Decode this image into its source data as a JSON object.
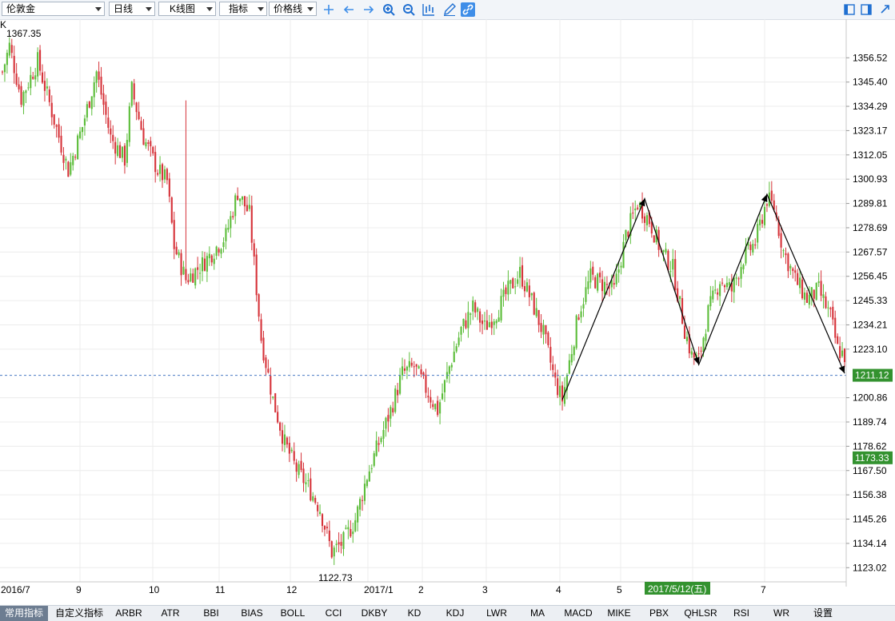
{
  "toolbar": {
    "symbol": "伦敦金",
    "period": "日线",
    "chart_type": "K线图",
    "indicator": "指标",
    "price_line": "价格线"
  },
  "chart_data": {
    "type": "candlestick",
    "title": "",
    "corner_label": "K",
    "price_axis_ticks": [
      "1356.52",
      "1345.40",
      "1334.29",
      "1323.17",
      "1312.05",
      "1300.93",
      "1289.81",
      "1278.69",
      "1267.57",
      "1256.45",
      "1245.33",
      "1234.21",
      "1223.10",
      "1200.86",
      "1189.74",
      "1178.62",
      "1167.50",
      "1156.38",
      "1145.26",
      "1134.14",
      "1123.02"
    ],
    "date_axis_ticks": [
      "2016/7",
      "9",
      "10",
      "11",
      "12",
      "2017/1",
      "2",
      "3",
      "4",
      "5",
      "6",
      "7"
    ],
    "high_label": "1367.35",
    "low_label": "1122.73",
    "current_price": "1211.12",
    "crosshair_price": "1173.33",
    "crosshair_date": "2017/5/12(五)",
    "grid": true,
    "up_color": "#5cbd3a",
    "down_color": "#d6333a",
    "ylim": [
      1118,
      1372
    ],
    "keypoints": [
      [
        0,
        1350
      ],
      [
        3,
        1362
      ],
      [
        8,
        1338
      ],
      [
        15,
        1355
      ],
      [
        22,
        1328
      ],
      [
        28,
        1305
      ],
      [
        34,
        1325
      ],
      [
        40,
        1350
      ],
      [
        46,
        1320
      ],
      [
        52,
        1310
      ],
      [
        55,
        1342
      ],
      [
        60,
        1320
      ],
      [
        66,
        1305
      ],
      [
        70,
        1300
      ],
      [
        73,
        1270
      ],
      [
        78,
        1255
      ],
      [
        85,
        1262
      ],
      [
        95,
        1275
      ],
      [
        100,
        1295
      ],
      [
        105,
        1285
      ],
      [
        110,
        1228
      ],
      [
        115,
        1200
      ],
      [
        120,
        1180
      ],
      [
        125,
        1168
      ],
      [
        130,
        1160
      ],
      [
        135,
        1150
      ],
      [
        140,
        1130
      ],
      [
        145,
        1135
      ],
      [
        150,
        1145
      ],
      [
        155,
        1165
      ],
      [
        160,
        1180
      ],
      [
        165,
        1195
      ],
      [
        170,
        1212
      ],
      [
        175,
        1215
      ],
      [
        180,
        1205
      ],
      [
        185,
        1195
      ],
      [
        190,
        1215
      ],
      [
        195,
        1232
      ],
      [
        200,
        1242
      ],
      [
        205,
        1233
      ],
      [
        210,
        1240
      ],
      [
        215,
        1250
      ],
      [
        220,
        1258
      ],
      [
        225,
        1245
      ],
      [
        230,
        1230
      ],
      [
        235,
        1208
      ],
      [
        238,
        1200
      ],
      [
        245,
        1240
      ],
      [
        250,
        1256
      ],
      [
        255,
        1253
      ],
      [
        260,
        1250
      ],
      [
        265,
        1275
      ],
      [
        270,
        1290
      ],
      [
        275,
        1282
      ],
      [
        280,
        1268
      ],
      [
        285,
        1260
      ],
      [
        290,
        1232
      ],
      [
        293,
        1220
      ],
      [
        296,
        1218
      ],
      [
        300,
        1240
      ],
      [
        305,
        1255
      ],
      [
        310,
        1250
      ],
      [
        315,
        1265
      ],
      [
        320,
        1272
      ],
      [
        325,
        1292
      ],
      [
        328,
        1288
      ],
      [
        332,
        1268
      ],
      [
        337,
        1255
      ],
      [
        342,
        1246
      ],
      [
        347,
        1250
      ],
      [
        352,
        1238
      ],
      [
        355,
        1223
      ],
      [
        358,
        1220
      ]
    ],
    "pattern_line": [
      [
        238,
        1200
      ],
      [
        273,
        1292
      ],
      [
        296,
        1216
      ],
      [
        325,
        1294
      ],
      [
        358,
        1212
      ]
    ]
  },
  "bottom_tabs": [
    "常用指标",
    "自定义指标",
    "ARBR",
    "ATR",
    "BBI",
    "BIAS",
    "BOLL",
    "CCI",
    "DKBY",
    "KD",
    "KDJ",
    "LWR",
    "MA",
    "MACD",
    "MIKE",
    "PBX",
    "QHLSR",
    "RSI",
    "WR",
    "设置"
  ]
}
